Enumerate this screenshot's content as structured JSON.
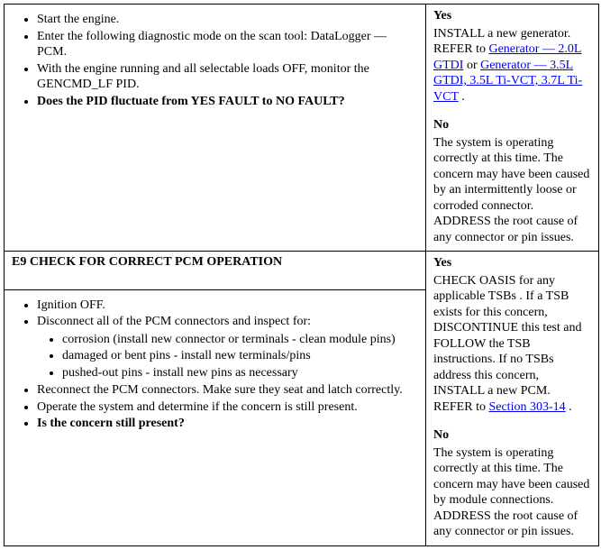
{
  "row1": {
    "left": {
      "items": [
        "Start the engine.",
        "Enter the following diagnostic mode on the scan tool: DataLogger — PCM.",
        "With the engine running and all selectable loads OFF, monitor the GENCMD_LF PID.",
        "Does the PID fluctuate from YES FAULT to NO FAULT?"
      ],
      "bold_last": true
    },
    "right": {
      "yes_label": "Yes",
      "yes_pre": "INSTALL a new generator. REFER to ",
      "link1": "Generator — 2.0L GTDI",
      "mid": " or ",
      "link2": "Generator — 3.5L GTDI, 3.5L Ti-VCT, 3.7L Ti-VCT",
      "yes_post": " .",
      "no_label": "No",
      "no_text": "The system is operating correctly at this time. The concern may have been caused by an intermittently loose or corroded connector. ADDRESS the root cause of any connector or pin issues."
    }
  },
  "row2": {
    "heading": "E9 CHECK FOR CORRECT PCM OPERATION",
    "left": {
      "items_a": [
        "Ignition OFF.",
        "Disconnect all of the PCM connectors and inspect for:"
      ],
      "sub_items": [
        "corrosion (install new connector or terminals - clean module pins)",
        "damaged or bent pins - install new terminals/pins",
        "pushed-out pins - install new pins as necessary"
      ],
      "items_b": [
        "Reconnect the PCM connectors. Make sure they seat and latch correctly.",
        "Operate the system and determine if the concern is still present.",
        "Is the concern still present?"
      ],
      "bold_last": true
    },
    "right": {
      "yes_label": "Yes",
      "yes_pre": "CHECK OASIS for any applicable TSBs . If a TSB exists for this concern, DISCONTINUE this test and FOLLOW the TSB instructions. If no TSBs address this concern, INSTALL a new PCM. REFER to ",
      "link1": "Section 303-14",
      "yes_post": " .",
      "no_label": "No",
      "no_text": "The system is operating correctly at this time. The concern may have been caused by module connections. ADDRESS the root cause of any connector or pin issues."
    }
  },
  "links_color": "#0000EE"
}
